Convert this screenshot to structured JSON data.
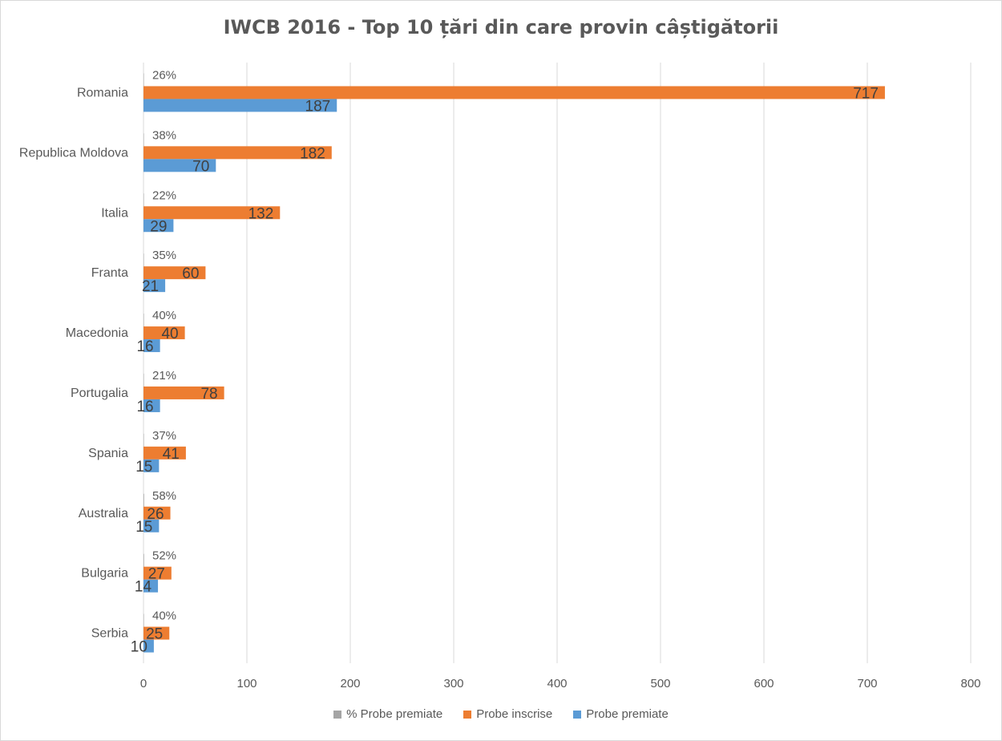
{
  "chart_data": {
    "type": "bar",
    "orientation": "horizontal",
    "title": "IWCB 2016 - Top 10 țări din care provin câștigătorii",
    "categories": [
      "Romania",
      "Republica Moldova",
      "Italia",
      "Franta",
      "Macedonia",
      "Portugalia",
      "Spania",
      "Australia",
      "Bulgaria",
      "Serbia"
    ],
    "series": [
      {
        "name": "% Probe premiate",
        "color": "#a5a5a5",
        "values": [
          0.26,
          0.38,
          0.22,
          0.35,
          0.4,
          0.21,
          0.37,
          0.58,
          0.52,
          0.4
        ],
        "labels": [
          "26%",
          "38%",
          "22%",
          "35%",
          "40%",
          "21%",
          "37%",
          "58%",
          "52%",
          "40%"
        ]
      },
      {
        "name": "Probe inscrise",
        "color": "#ed7d31",
        "values": [
          717,
          182,
          132,
          60,
          40,
          78,
          41,
          26,
          27,
          25
        ]
      },
      {
        "name": "Probe premiate",
        "color": "#5b9bd5",
        "values": [
          187,
          70,
          29,
          21,
          16,
          16,
          15,
          15,
          14,
          10
        ]
      }
    ],
    "xlim": [
      0,
      800
    ],
    "xticks": [
      0,
      100,
      200,
      300,
      400,
      500,
      600,
      700,
      800
    ],
    "grid": true,
    "legend_position": "bottom"
  }
}
